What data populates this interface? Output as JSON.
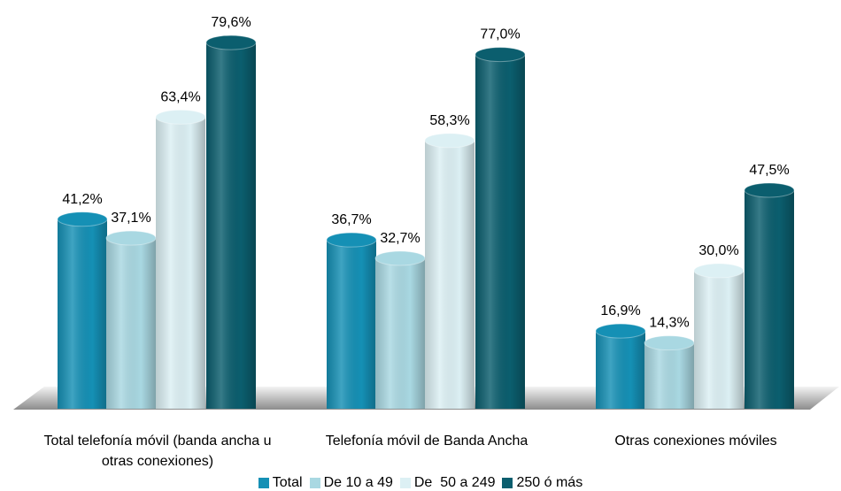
{
  "chart_data": {
    "type": "bar",
    "categories": [
      "Total telefonía móvil (banda ancha u otras conexiones)",
      "Telefonía móvil de Banda Ancha",
      "Otras conexiones móviles"
    ],
    "series": [
      {
        "name": "Total",
        "color": "#1590b5",
        "values": [
          41.2,
          36.7,
          16.9
        ],
        "value_labels": [
          "41,2%",
          "36,7%",
          "16,9%"
        ]
      },
      {
        "name": "De 10 a 49",
        "color": "#a9d8e2",
        "values": [
          37.1,
          32.7,
          14.3
        ],
        "value_labels": [
          "37,1%",
          "32,7%",
          "14,3%"
        ]
      },
      {
        "name": "De  50 a 249",
        "color": "#dcf0f4",
        "values": [
          63.4,
          58.3,
          30.0
        ],
        "value_labels": [
          "63,4%",
          "58,3%",
          "30,0%"
        ]
      },
      {
        "name": "250 ó más",
        "color": "#0b5e6e",
        "values": [
          79.6,
          77.0,
          47.5
        ],
        "value_labels": [
          "79,6%",
          "77,0%",
          "47,5%"
        ]
      }
    ],
    "ylim": [
      0,
      85
    ]
  }
}
